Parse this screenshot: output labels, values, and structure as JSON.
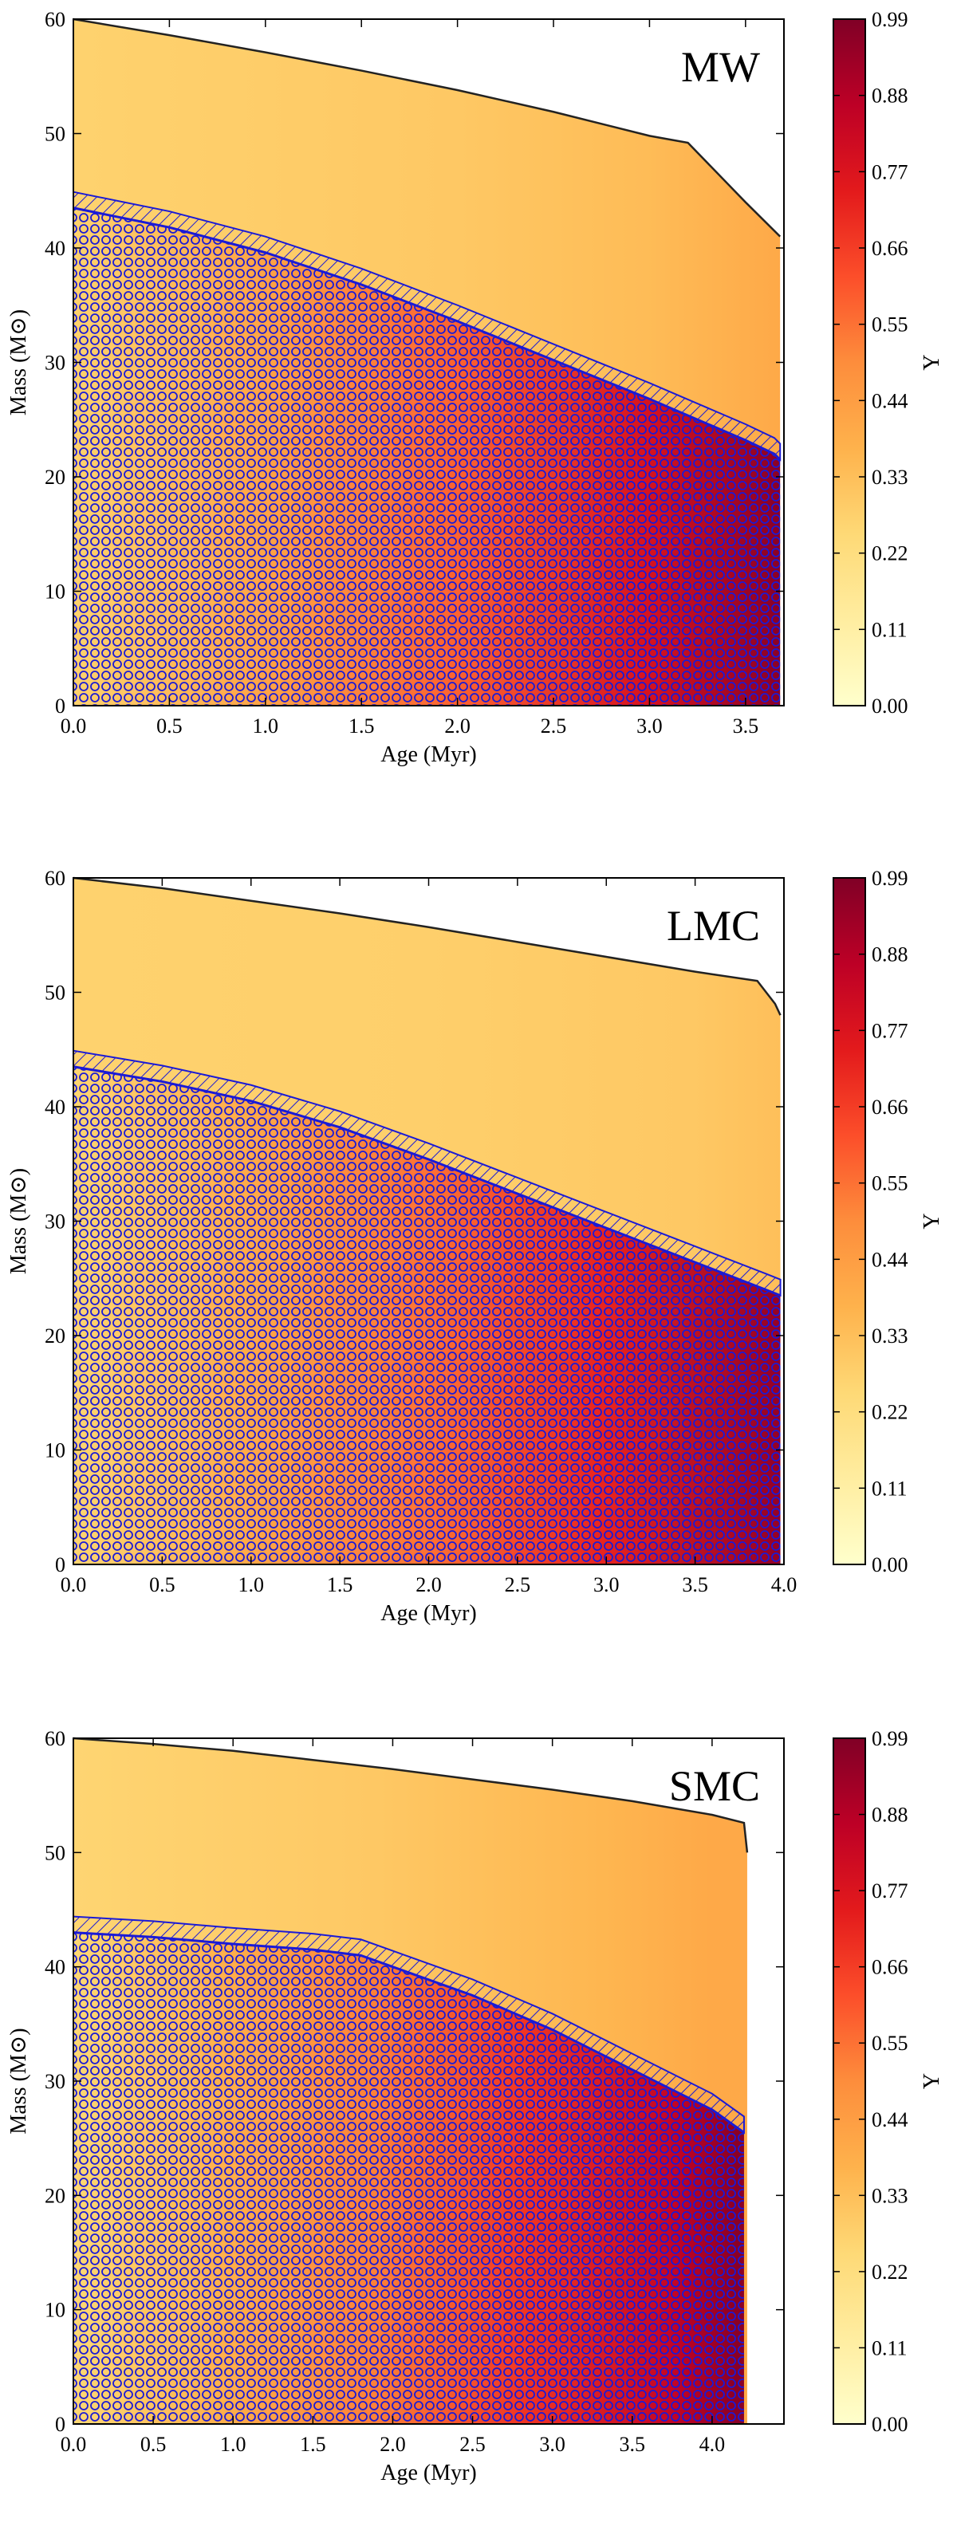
{
  "colors": {
    "cmap": [
      "#ffffcc",
      "#ffeda0",
      "#fed976",
      "#feb24c",
      "#fd8d3c",
      "#fc4e2a",
      "#e31a1c",
      "#bd0026",
      "#800026"
    ],
    "convective": "#1a1ad6",
    "frame": "#000000"
  },
  "chart_data": [
    {
      "type": "area",
      "label": "MW",
      "xlabel": "Age (Myr)",
      "ylabel": "Mass (M⊙)",
      "colorbar_label": "Y",
      "xlim": [
        0,
        3.7
      ],
      "ylim": [
        0,
        60
      ],
      "xticks": [
        "0.0",
        "0.5",
        "1.0",
        "1.5",
        "2.0",
        "2.5",
        "3.0",
        "3.5"
      ],
      "yticks": [
        "0",
        "10",
        "20",
        "30",
        "40",
        "50",
        "60"
      ],
      "colorbar_ticks": [
        "0.00",
        "0.11",
        "0.22",
        "0.33",
        "0.44",
        "0.55",
        "0.66",
        "0.77",
        "0.88",
        "0.99"
      ],
      "colorbar_range": [
        0,
        0.99
      ],
      "grid": false,
      "total_mass": {
        "x": [
          0,
          0.5,
          1.0,
          1.5,
          2.0,
          2.5,
          3.0,
          3.2,
          3.5,
          3.68
        ],
        "y": [
          60,
          58.6,
          57.1,
          55.5,
          53.8,
          51.9,
          49.8,
          49.2,
          44,
          41
        ]
      },
      "core_boundary": {
        "x": [
          0,
          0.5,
          1.0,
          1.5,
          2.0,
          2.5,
          3.0,
          3.5,
          3.65,
          3.68
        ],
        "y": [
          43.5,
          41.8,
          39.6,
          36.8,
          33.6,
          30.2,
          26.8,
          23.2,
          22.0,
          21.5
        ]
      },
      "y_surface_values": {
        "x": [
          0,
          2.0,
          3.0,
          3.7
        ],
        "y": [
          0.27,
          0.3,
          0.34,
          0.4
        ]
      },
      "y_core_center_values": {
        "x": [
          0,
          1.0,
          2.0,
          3.0,
          3.7
        ],
        "y": [
          0.27,
          0.42,
          0.58,
          0.78,
          0.97
        ]
      }
    },
    {
      "type": "area",
      "label": "LMC",
      "xlabel": "Age (Myr)",
      "ylabel": "Mass (M⊙)",
      "colorbar_label": "Y",
      "xlim": [
        0,
        4.0
      ],
      "ylim": [
        0,
        60
      ],
      "xticks": [
        "0.0",
        "0.5",
        "1.0",
        "1.5",
        "2.0",
        "2.5",
        "3.0",
        "3.5",
        "4.0"
      ],
      "yticks": [
        "0",
        "10",
        "20",
        "30",
        "40",
        "50",
        "60"
      ],
      "colorbar_ticks": [
        "0.00",
        "0.11",
        "0.22",
        "0.33",
        "0.44",
        "0.55",
        "0.66",
        "0.77",
        "0.88",
        "0.99"
      ],
      "colorbar_range": [
        0,
        0.99
      ],
      "grid": false,
      "total_mass": {
        "x": [
          0,
          0.5,
          1.0,
          1.5,
          2.0,
          2.5,
          3.0,
          3.5,
          3.85,
          3.95,
          3.98
        ],
        "y": [
          60,
          59.1,
          58.0,
          56.9,
          55.7,
          54.4,
          53.1,
          51.8,
          51.0,
          49,
          48
        ]
      },
      "core_boundary": {
        "x": [
          0,
          0.5,
          1.0,
          1.5,
          2.0,
          2.5,
          3.0,
          3.5,
          3.9,
          3.98
        ],
        "y": [
          43.5,
          42.2,
          40.5,
          38.2,
          35.4,
          32.4,
          29.4,
          26.4,
          24.0,
          23.5
        ]
      },
      "y_surface_values": {
        "x": [
          0,
          2.0,
          3.5,
          4.0
        ],
        "y": [
          0.27,
          0.28,
          0.3,
          0.33
        ]
      },
      "y_core_center_values": {
        "x": [
          0,
          1.0,
          2.0,
          3.0,
          4.0
        ],
        "y": [
          0.26,
          0.4,
          0.55,
          0.72,
          0.95
        ]
      }
    },
    {
      "type": "area",
      "label": "SMC",
      "xlabel": "Age (Myr)",
      "ylabel": "Mass (M⊙)",
      "colorbar_label": "Y",
      "xlim": [
        0,
        4.45
      ],
      "ylim": [
        0,
        60
      ],
      "xticks": [
        "0.0",
        "0.5",
        "1.0",
        "1.5",
        "2.0",
        "2.5",
        "3.0",
        "3.5",
        "4.0"
      ],
      "yticks": [
        "0",
        "10",
        "20",
        "30",
        "40",
        "50",
        "60"
      ],
      "colorbar_ticks": [
        "0.00",
        "0.11",
        "0.22",
        "0.33",
        "0.44",
        "0.55",
        "0.66",
        "0.77",
        "0.88",
        "0.99"
      ],
      "colorbar_range": [
        0,
        0.99
      ],
      "grid": false,
      "total_mass": {
        "x": [
          0,
          0.5,
          1.0,
          1.5,
          2.0,
          2.5,
          3.0,
          3.5,
          4.0,
          4.2,
          4.22
        ],
        "y": [
          60,
          59.5,
          58.9,
          58.1,
          57.3,
          56.4,
          55.5,
          54.5,
          53.3,
          52.6,
          50
        ]
      },
      "core_boundary": {
        "x": [
          0,
          0.5,
          1.0,
          1.5,
          1.8,
          2.0,
          2.5,
          3.0,
          3.5,
          4.0,
          4.2
        ],
        "y": [
          43.0,
          42.6,
          42.0,
          41.5,
          41.0,
          40.0,
          37.5,
          34.5,
          31.0,
          27.5,
          25.5
        ]
      },
      "y_surface_values": {
        "x": [
          0,
          2.0,
          3.5,
          4.2
        ],
        "y": [
          0.26,
          0.3,
          0.36,
          0.4
        ]
      },
      "y_core_center_values": {
        "x": [
          0,
          1.0,
          2.0,
          3.0,
          4.0,
          4.4
        ],
        "y": [
          0.25,
          0.38,
          0.52,
          0.68,
          0.85,
          0.97
        ]
      }
    }
  ]
}
